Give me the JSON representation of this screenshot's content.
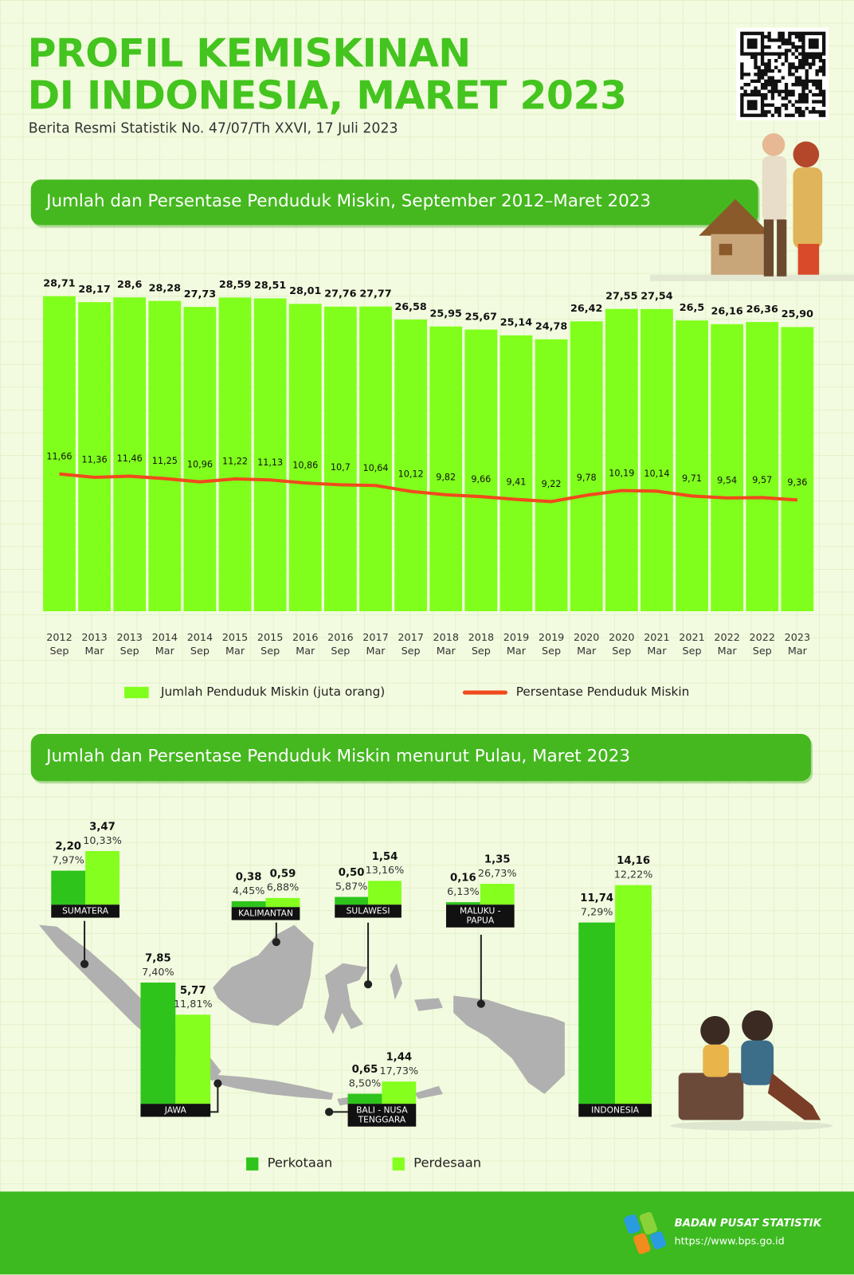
{
  "header": {
    "title_lines": [
      "PROFIL KEMISKINAN",
      "DI INDONESIA, MARET 2023"
    ],
    "subtitle": "Berita Resmi Statistik No. 47/07/Th XXVI, 17 Juli 2023"
  },
  "chart_data": [
    {
      "type": "combo",
      "title": "Jumlah dan Persentase Penduduk Miskin, September 2012–Maret 2023",
      "categories": [
        "2012 Sep",
        "2013 Mar",
        "2013 Sep",
        "2014 Mar",
        "2014 Sep",
        "2015 Mar",
        "2015 Sep",
        "2016 Mar",
        "2016 Sep",
        "2017 Mar",
        "2017 Sep",
        "2018 Mar",
        "2018 Sep",
        "2019 Mar",
        "2019 Sep",
        "2020 Mar",
        "2020 Sep",
        "2021 Mar",
        "2021 Sep",
        "2022 Mar",
        "2022 Sep",
        "2023 Mar"
      ],
      "series": [
        {
          "name": "Jumlah Penduduk Miskin (juta orang)",
          "type": "bar",
          "color": "#80ff1c",
          "values": [
            28.71,
            28.17,
            28.6,
            28.28,
            27.73,
            28.59,
            28.51,
            28.01,
            27.76,
            27.77,
            26.58,
            25.95,
            25.67,
            25.14,
            24.78,
            26.42,
            27.55,
            27.54,
            26.5,
            26.16,
            26.36,
            25.9
          ],
          "value_labels": [
            "28,71",
            "28,17",
            "28,6",
            "28,28",
            "27,73",
            "28,59",
            "28,51",
            "28,01",
            "27,76",
            "27,77",
            "26,58",
            "25,95",
            "25,67",
            "25,14",
            "24,78",
            "26,42",
            "27,55",
            "27,54",
            "26,5",
            "26,16",
            "26,36",
            "25,90"
          ]
        },
        {
          "name": "Persentase Penduduk Miskin",
          "type": "line",
          "color": "#f04a1c",
          "values": [
            11.66,
            11.36,
            11.46,
            11.25,
            10.96,
            11.22,
            11.13,
            10.86,
            10.7,
            10.64,
            10.12,
            9.82,
            9.66,
            9.41,
            9.22,
            9.78,
            10.19,
            10.14,
            9.71,
            9.54,
            9.57,
            9.36
          ],
          "value_labels": [
            "11,66",
            "11,36",
            "11,46",
            "11,25",
            "10,96",
            "11,22",
            "11,13",
            "10,86",
            "10,7",
            "10,64",
            "10,12",
            "9,82",
            "9,66",
            "9,41",
            "9,22",
            "9,78",
            "10,19",
            "10,14",
            "9,71",
            "9,54",
            "9,57",
            "9,36"
          ]
        }
      ]
    },
    {
      "type": "bar",
      "title": "Jumlah dan Persentase Penduduk Miskin menurut Pulau, Maret 2023",
      "categories": [
        "SUMATERA",
        "KALIMANTAN",
        "SULAWESI",
        "MALUKU - PAPUA",
        "JAWA",
        "BALI - NUSA TENGGARA",
        "INDONESIA"
      ],
      "series": [
        {
          "name": "Perkotaan",
          "color": "#2ec41b",
          "values": [
            2.2,
            0.38,
            0.5,
            0.16,
            7.85,
            0.65,
            11.74
          ],
          "value_labels": [
            "2,20",
            "0,38",
            "0,50",
            "0,16",
            "7,85",
            "0,65",
            "11,74"
          ],
          "percentages": [
            "7,97%",
            "4,45%",
            "5,87%",
            "6,13%",
            "7,40%",
            "8,50%",
            "7,29%"
          ]
        },
        {
          "name": "Perdesaan",
          "color": "#84ff1e",
          "values": [
            3.47,
            0.59,
            1.54,
            1.35,
            5.77,
            1.44,
            14.16
          ],
          "value_labels": [
            "3,47",
            "0,59",
            "1,54",
            "1,35",
            "5,77",
            "1,44",
            "14,16"
          ],
          "percentages": [
            "10,33%",
            "6,88%",
            "13,16%",
            "26,73%",
            "11,81%",
            "17,73%",
            "12,22%"
          ]
        }
      ]
    }
  ],
  "footer": {
    "org": "BADAN PUSAT STATISTIK",
    "url": "https://www.bps.go.id"
  }
}
